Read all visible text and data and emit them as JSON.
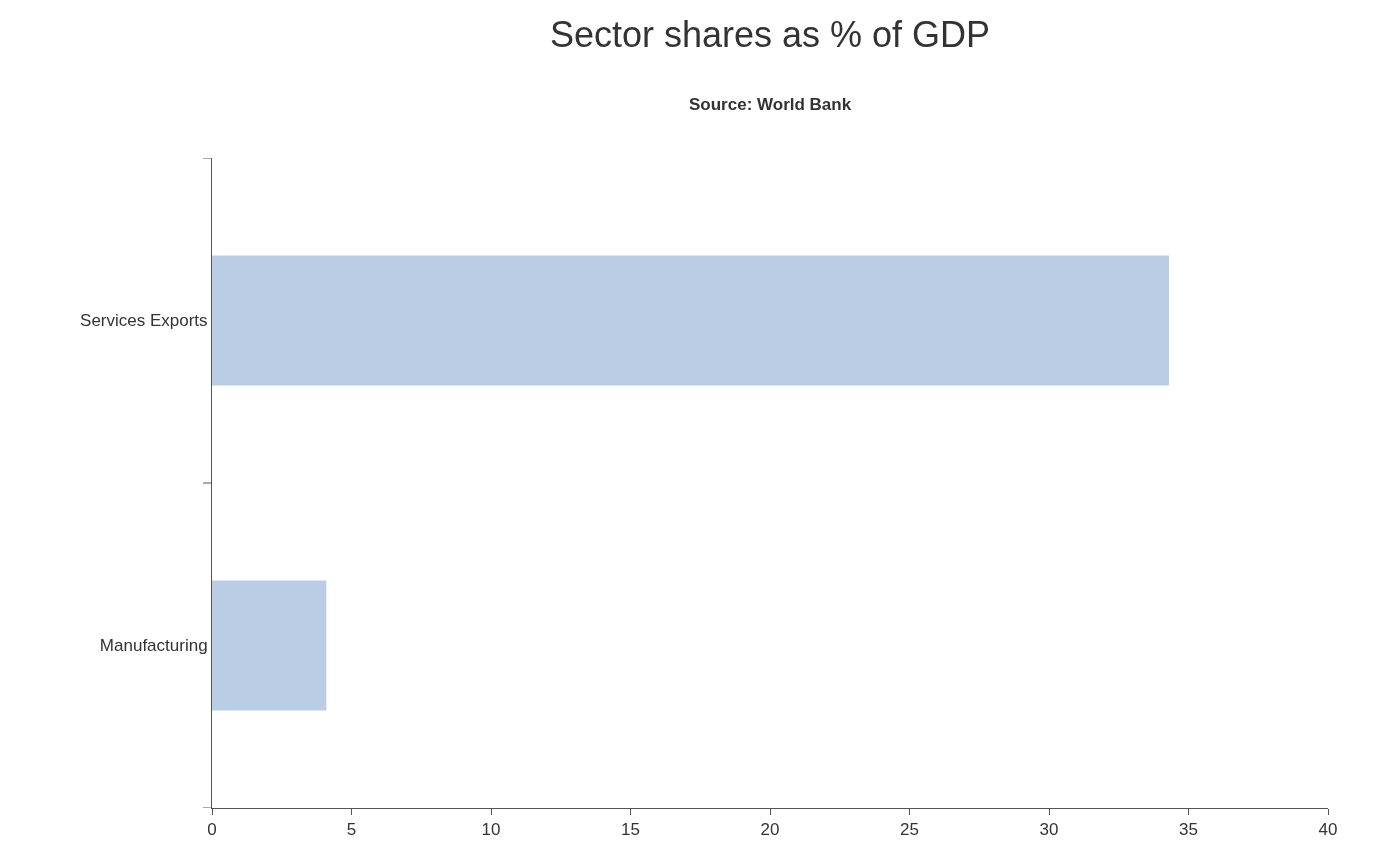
{
  "chart_data": {
    "type": "bar",
    "title": "Sector shares as % of GDP",
    "subtitle": "Source: World Bank",
    "orientation": "horizontal",
    "categories": [
      "Services Exports",
      "Manufacturing"
    ],
    "values": [
      34.3,
      4.1
    ],
    "color": "#bbcde5",
    "xlim": [
      0,
      40
    ],
    "xticks": [
      0,
      5,
      10,
      15,
      20,
      25,
      30,
      35,
      40
    ],
    "grid": false
  }
}
